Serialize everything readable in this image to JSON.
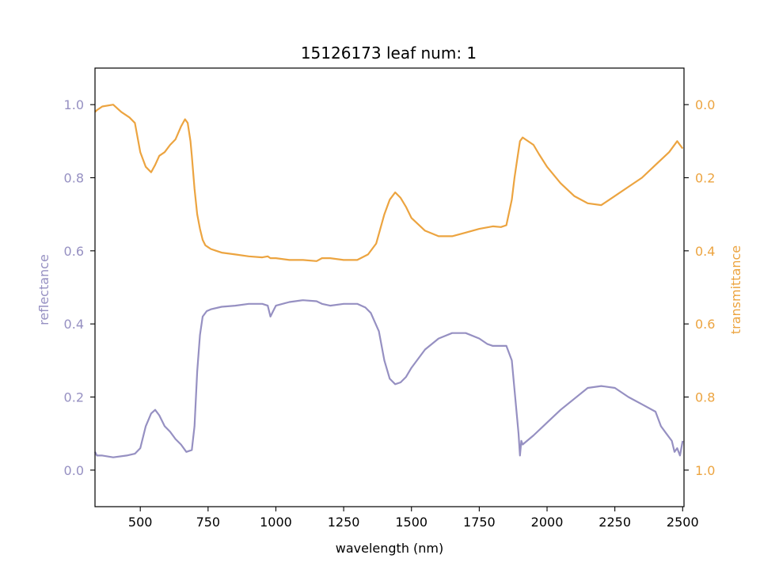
{
  "chart_data": {
    "type": "line",
    "title": "15126173 leaf num: 1",
    "xlabel": "wavelength (nm)",
    "ylabel_left": "reflectance",
    "ylabel_right": "transmittance",
    "xlim": [
      333,
      2505
    ],
    "ylim_left": [
      -0.1,
      1.1
    ],
    "ylim_right": [
      1.1,
      -0.1
    ],
    "right_axis_inverted": true,
    "grid": false,
    "x_ticks": [
      "500",
      "750",
      "1000",
      "1250",
      "1500",
      "1750",
      "2000",
      "2250",
      "2500"
    ],
    "y_left_ticks": [
      "0.0",
      "0.2",
      "0.4",
      "0.6",
      "0.8",
      "1.0"
    ],
    "y_right_ticks": [
      "0.0",
      "0.2",
      "0.4",
      "0.6",
      "0.8",
      "1.0"
    ],
    "colors": {
      "reflectance": "#9690c2",
      "transmittance": "#eca440",
      "axis": "#000000"
    },
    "series": [
      {
        "key": "reflectance",
        "axis": "left",
        "x": [
          333,
          340,
          360,
          400,
          450,
          480,
          500,
          520,
          540,
          555,
          570,
          590,
          610,
          630,
          650,
          670,
          690,
          700,
          710,
          720,
          730,
          745,
          760,
          800,
          850,
          900,
          950,
          970,
          980,
          990,
          1000,
          1050,
          1100,
          1150,
          1170,
          1200,
          1250,
          1300,
          1330,
          1350,
          1380,
          1400,
          1420,
          1440,
          1460,
          1480,
          1500,
          1550,
          1600,
          1650,
          1700,
          1750,
          1780,
          1800,
          1850,
          1870,
          1880,
          1890,
          1895,
          1900,
          1905,
          1910,
          1950,
          2000,
          2050,
          2100,
          2150,
          2200,
          2250,
          2300,
          2350,
          2400,
          2420,
          2440,
          2460,
          2470,
          2480,
          2490,
          2500
        ],
        "y": [
          0.05,
          0.04,
          0.04,
          0.035,
          0.04,
          0.045,
          0.06,
          0.12,
          0.155,
          0.165,
          0.15,
          0.12,
          0.105,
          0.085,
          0.07,
          0.05,
          0.055,
          0.12,
          0.27,
          0.37,
          0.42,
          0.435,
          0.44,
          0.447,
          0.45,
          0.455,
          0.455,
          0.45,
          0.42,
          0.435,
          0.45,
          0.46,
          0.465,
          0.462,
          0.455,
          0.45,
          0.455,
          0.455,
          0.445,
          0.43,
          0.38,
          0.3,
          0.25,
          0.235,
          0.24,
          0.255,
          0.28,
          0.33,
          0.36,
          0.375,
          0.375,
          0.36,
          0.345,
          0.34,
          0.34,
          0.3,
          0.22,
          0.14,
          0.1,
          0.04,
          0.08,
          0.07,
          0.095,
          0.13,
          0.165,
          0.195,
          0.225,
          0.23,
          0.225,
          0.2,
          0.18,
          0.16,
          0.12,
          0.1,
          0.08,
          0.05,
          0.06,
          0.04,
          0.08
        ]
      },
      {
        "key": "transmittance",
        "axis": "right",
        "x": [
          333,
          340,
          360,
          400,
          430,
          460,
          480,
          500,
          520,
          540,
          555,
          570,
          590,
          610,
          630,
          650,
          665,
          675,
          685,
          690,
          700,
          710,
          720,
          730,
          740,
          750,
          760,
          780,
          800,
          850,
          900,
          950,
          970,
          980,
          1000,
          1050,
          1100,
          1150,
          1170,
          1200,
          1250,
          1300,
          1340,
          1370,
          1400,
          1420,
          1440,
          1460,
          1480,
          1500,
          1550,
          1600,
          1650,
          1700,
          1750,
          1800,
          1830,
          1850,
          1870,
          1880,
          1890,
          1900,
          1910,
          1920,
          1950,
          1970,
          2000,
          2050,
          2100,
          2150,
          2200,
          2250,
          2300,
          2350,
          2400,
          2450,
          2480,
          2500
        ],
        "y": [
          0.02,
          0.015,
          0.005,
          0.0,
          0.02,
          0.035,
          0.05,
          0.13,
          0.17,
          0.185,
          0.165,
          0.14,
          0.13,
          0.11,
          0.095,
          0.06,
          0.04,
          0.05,
          0.1,
          0.14,
          0.23,
          0.3,
          0.34,
          0.37,
          0.385,
          0.39,
          0.395,
          0.4,
          0.405,
          0.41,
          0.415,
          0.418,
          0.415,
          0.42,
          0.42,
          0.425,
          0.425,
          0.428,
          0.42,
          0.42,
          0.425,
          0.425,
          0.41,
          0.38,
          0.3,
          0.26,
          0.24,
          0.255,
          0.28,
          0.31,
          0.345,
          0.36,
          0.36,
          0.35,
          0.34,
          0.333,
          0.335,
          0.33,
          0.26,
          0.2,
          0.15,
          0.1,
          0.09,
          0.095,
          0.11,
          0.135,
          0.17,
          0.215,
          0.25,
          0.27,
          0.275,
          0.25,
          0.225,
          0.2,
          0.165,
          0.13,
          0.1,
          0.12
        ]
      }
    ]
  }
}
